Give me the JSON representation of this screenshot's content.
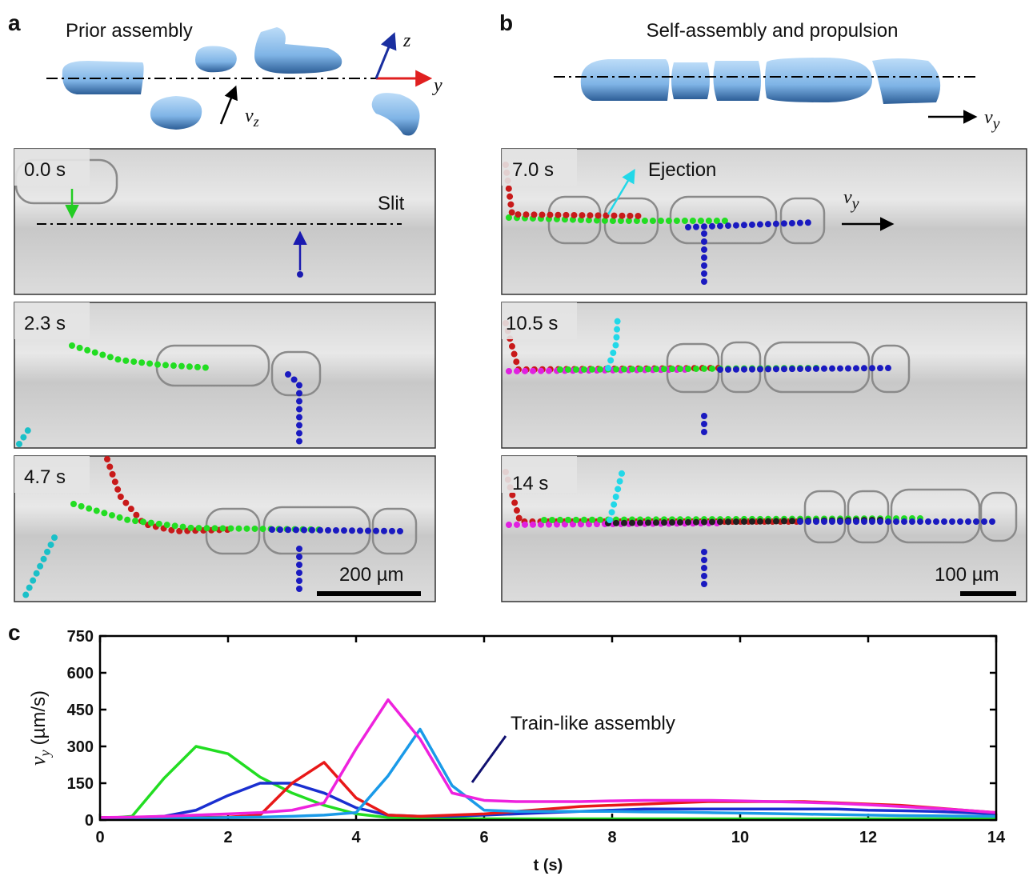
{
  "panel_a": {
    "letter": "a",
    "title": "Prior assembly",
    "axis_z": "z",
    "axis_y": "y",
    "velocity": "v",
    "velocity_sub": "z",
    "frames": [
      {
        "time": "0.0 s",
        "label": "Slit"
      },
      {
        "time": "2.3 s"
      },
      {
        "time": "4.7 s",
        "scale": "200 µm"
      }
    ]
  },
  "panel_b": {
    "letter": "b",
    "title": "Self-assembly and propulsion",
    "velocity": "v",
    "velocity_sub": "y",
    "frames": [
      {
        "time": "7.0 s",
        "annotation": "Ejection",
        "velocity": "v",
        "velocity_sub": "y"
      },
      {
        "time": "10.5 s"
      },
      {
        "time": "14 s",
        "scale": "100 µm"
      }
    ]
  },
  "chart_data": {
    "type": "line",
    "panel": "c",
    "xlabel": "t (s)",
    "ylabel_symbol": "v",
    "ylabel_sub": "y",
    "ylabel_unit": "(µm/s)",
    "annotation": "Train-like assembly",
    "xlim": [
      0,
      14
    ],
    "xticks": [
      0,
      2,
      4,
      6,
      8,
      10,
      12,
      14
    ],
    "ylim": [
      0,
      750
    ],
    "yticks": [
      0,
      150,
      300,
      450,
      600,
      750
    ],
    "x": [
      0,
      0.5,
      1,
      1.5,
      2,
      2.5,
      3,
      3.5,
      4,
      4.5,
      5,
      5.5,
      6,
      6.5,
      7,
      7.5,
      8,
      8.5,
      9,
      9.5,
      10,
      10.5,
      11,
      11.5,
      12,
      12.5,
      13,
      13.5,
      14
    ],
    "series": [
      {
        "color": "#22dd22",
        "values": [
          5,
          15,
          170,
          300,
          270,
          175,
          110,
          60,
          25,
          10,
          8,
          6,
          5,
          5,
          5,
          5,
          5,
          5,
          5,
          5,
          5,
          5,
          5,
          5,
          5,
          5,
          5,
          5,
          5
        ]
      },
      {
        "color": "#1a2fd0",
        "values": [
          10,
          10,
          15,
          40,
          100,
          150,
          150,
          110,
          50,
          20,
          15,
          15,
          20,
          25,
          30,
          35,
          40,
          45,
          45,
          45,
          45,
          45,
          45,
          45,
          40,
          38,
          35,
          30,
          25
        ]
      },
      {
        "color": "#e81818",
        "values": [
          10,
          10,
          10,
          10,
          12,
          20,
          150,
          235,
          90,
          20,
          15,
          20,
          25,
          35,
          45,
          55,
          60,
          65,
          70,
          75,
          75,
          75,
          75,
          70,
          65,
          60,
          50,
          40,
          30
        ]
      },
      {
        "color": "#1a9ae8",
        "values": [
          5,
          5,
          5,
          8,
          10,
          12,
          15,
          20,
          30,
          180,
          370,
          140,
          40,
          35,
          35,
          35,
          35,
          33,
          32,
          30,
          28,
          26,
          24,
          22,
          20,
          18,
          17,
          16,
          15
        ]
      },
      {
        "color": "#ee22dd",
        "values": [
          10,
          12,
          15,
          20,
          25,
          30,
          40,
          70,
          290,
          490,
          330,
          110,
          80,
          75,
          75,
          75,
          78,
          80,
          80,
          80,
          78,
          75,
          72,
          68,
          62,
          55,
          48,
          40,
          30
        ]
      }
    ]
  }
}
